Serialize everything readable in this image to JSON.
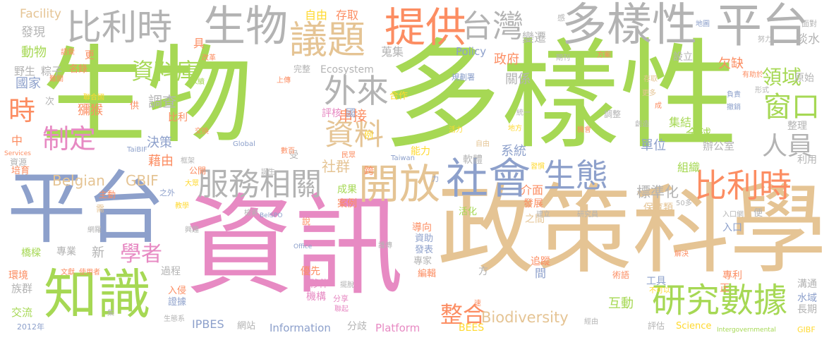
{
  "palette": {
    "green": "#A6D854",
    "pink": "#E78AC3",
    "blue": "#8DA0CB",
    "tan": "#E5C494",
    "orange": "#FC8D62",
    "yellow": "#FFD92F",
    "gray": "#B3B3B3",
    "teal": "#66C2A5"
  },
  "words": [
    {
      "text": "生物",
      "color": "green"
    },
    {
      "text": "多樣性",
      "color": "green"
    },
    {
      "text": "資訊",
      "color": "pink"
    },
    {
      "text": "政策科學",
      "color": "tan"
    },
    {
      "text": "平台",
      "color": "blue"
    },
    {
      "text": "知識",
      "color": "green"
    },
    {
      "text": "比利時",
      "color": "gray"
    },
    {
      "text": "生物",
      "color": "gray"
    },
    {
      "text": "多樣性",
      "color": "gray"
    },
    {
      "text": "平台",
      "color": "gray"
    },
    {
      "text": "提供",
      "color": "orange"
    },
    {
      "text": "台灣",
      "color": "gray"
    },
    {
      "text": "議題",
      "color": "tan"
    },
    {
      "text": "服務相關",
      "color": "gray"
    },
    {
      "text": "開放",
      "color": "tan"
    },
    {
      "text": "社會",
      "color": "blue"
    },
    {
      "text": "生態",
      "color": "blue"
    },
    {
      "text": "比利時",
      "color": "orange"
    },
    {
      "text": "研究數據",
      "color": "green"
    },
    {
      "text": "資料",
      "color": "tan"
    },
    {
      "text": "外來",
      "color": "gray"
    },
    {
      "text": "資料庫",
      "color": "green"
    },
    {
      "text": "制定",
      "color": "pink"
    },
    {
      "text": "學者",
      "color": "pink"
    },
    {
      "text": "時",
      "color": "orange"
    },
    {
      "text": "人員",
      "color": "gray"
    },
    {
      "text": "窗口",
      "color": "green"
    },
    {
      "text": "領域",
      "color": "green"
    },
    {
      "text": "整合",
      "color": "orange"
    },
    {
      "text": "Biodiversity",
      "color": "tan"
    },
    {
      "text": "Belgian",
      "color": "tan"
    },
    {
      "text": "GBIF",
      "color": "tan"
    },
    {
      "text": "Facility",
      "color": "tan"
    },
    {
      "text": "自由",
      "color": "yellow"
    },
    {
      "text": "存取",
      "color": "orange"
    },
    {
      "text": "變遷",
      "color": "gray"
    },
    {
      "text": "淡水",
      "color": "gray"
    },
    {
      "text": "發現",
      "color": "gray"
    },
    {
      "text": "動物",
      "color": "green"
    },
    {
      "text": "野生",
      "color": "gray"
    },
    {
      "text": "粽子",
      "color": "gray"
    },
    {
      "text": "國家",
      "color": "blue"
    },
    {
      "text": "獼猴",
      "color": "orange"
    },
    {
      "text": "比利",
      "color": "orange"
    },
    {
      "text": "調查",
      "color": "gray"
    },
    {
      "text": "Policy",
      "color": "blue"
    },
    {
      "text": "政府",
      "color": "orange"
    },
    {
      "text": "蒐集",
      "color": "gray"
    },
    {
      "text": "欠缺",
      "color": "orange"
    },
    {
      "text": "關係",
      "color": "gray"
    },
    {
      "text": "Ecosystem",
      "color": "gray"
    },
    {
      "text": "完整",
      "color": "gray"
    },
    {
      "text": "串接",
      "color": "orange"
    },
    {
      "text": "合作",
      "color": "yellow"
    },
    {
      "text": "評核",
      "color": "pink"
    },
    {
      "text": "國",
      "color": "blue"
    },
    {
      "text": "集結",
      "color": "green"
    },
    {
      "text": "全球",
      "color": "green"
    },
    {
      "text": "整理",
      "color": "gray"
    },
    {
      "text": "單位",
      "color": "blue"
    },
    {
      "text": "辦公室",
      "color": "gray"
    },
    {
      "text": "決策",
      "color": "blue"
    },
    {
      "text": "藉由",
      "color": "orange"
    },
    {
      "text": "社群",
      "color": "tan"
    },
    {
      "text": "系統",
      "color": "blue"
    },
    {
      "text": "能力",
      "color": "yellow"
    },
    {
      "text": "軟體",
      "color": "gray"
    },
    {
      "text": "組織",
      "color": "green"
    },
    {
      "text": "利用",
      "color": "gray"
    },
    {
      "text": "標準化",
      "color": "gray"
    },
    {
      "text": "介面",
      "color": "orange"
    },
    {
      "text": "成果",
      "color": "green"
    },
    {
      "text": "案例",
      "color": "orange"
    },
    {
      "text": "活化",
      "color": "green"
    },
    {
      "text": "發展",
      "color": "orange"
    },
    {
      "text": "保育類",
      "color": "tan"
    },
    {
      "text": "之間",
      "color": "tan"
    },
    {
      "text": "導向",
      "color": "orange"
    },
    {
      "text": "資助",
      "color": "blue"
    },
    {
      "text": "發表",
      "color": "blue"
    },
    {
      "text": "專家",
      "color": "gray"
    },
    {
      "text": "間",
      "color": "blue"
    },
    {
      "text": "追蹤",
      "color": "orange"
    },
    {
      "text": "方",
      "color": "gray"
    },
    {
      "text": "優先",
      "color": "orange"
    },
    {
      "text": "夥伴",
      "color": "pink"
    },
    {
      "text": "機構",
      "color": "pink"
    },
    {
      "text": "編輯",
      "color": "orange"
    },
    {
      "text": "互動",
      "color": "green"
    },
    {
      "text": "工具",
      "color": "blue"
    },
    {
      "text": "溝通",
      "color": "gray"
    },
    {
      "text": "水域",
      "color": "blue"
    },
    {
      "text": "長期",
      "color": "gray"
    },
    {
      "text": "過程",
      "color": "gray"
    },
    {
      "text": "入侵",
      "color": "orange"
    },
    {
      "text": "證據",
      "color": "blue"
    },
    {
      "text": "族群",
      "color": "gray"
    },
    {
      "text": "交流",
      "color": "green"
    },
    {
      "text": "環境",
      "color": "orange"
    },
    {
      "text": "橋樑",
      "color": "green"
    },
    {
      "text": "專業",
      "color": "gray"
    },
    {
      "text": "新",
      "color": "gray"
    },
    {
      "text": "培育",
      "color": "orange"
    },
    {
      "text": "資源",
      "color": "gray"
    },
    {
      "text": "IPBES",
      "color": "blue"
    },
    {
      "text": "網站",
      "color": "gray"
    },
    {
      "text": "Information",
      "color": "blue"
    },
    {
      "text": "分歧",
      "color": "gray"
    },
    {
      "text": "Platform",
      "color": "pink"
    },
    {
      "text": "BEES",
      "color": "yellow"
    },
    {
      "text": "Science",
      "color": "yellow"
    },
    {
      "text": "評估",
      "color": "gray"
    },
    {
      "text": "中",
      "color": "orange"
    },
    {
      "text": "名錄",
      "color": "orange"
    },
    {
      "text": "次",
      "color": "gray"
    },
    {
      "text": "具",
      "color": "orange"
    },
    {
      "text": "更",
      "color": "orange"
    },
    {
      "text": "設立",
      "color": "gray"
    },
    {
      "text": "原始",
      "color": "gray"
    },
    {
      "text": "面對",
      "color": "gray"
    },
    {
      "text": "公開",
      "color": "orange"
    },
    {
      "text": "主動",
      "color": "orange"
    },
    {
      "text": "需",
      "color": "tan"
    },
    {
      "text": "跨",
      "color": "orange"
    },
    {
      "text": "受",
      "color": "gray"
    },
    {
      "text": "例",
      "color": "yellow"
    },
    {
      "text": "供",
      "color": "orange"
    },
    {
      "text": "地圖",
      "color": "blue"
    },
    {
      "text": "感",
      "color": "gray"
    },
    {
      "text": "努力",
      "color": "gray"
    },
    {
      "text": "方案",
      "color": "orange"
    },
    {
      "text": "期刊",
      "color": "gray"
    },
    {
      "text": "規劃署",
      "color": "blue"
    },
    {
      "text": "調整",
      "color": "gray"
    },
    {
      "text": "更多",
      "color": "tan"
    },
    {
      "text": "成",
      "color": "orange"
    },
    {
      "text": "負責",
      "color": "blue"
    },
    {
      "text": "撤銷",
      "color": "blue"
    },
    {
      "text": "形式",
      "color": "gray"
    },
    {
      "text": "有助於",
      "color": "orange"
    },
    {
      "text": "存取",
      "color": "tan"
    },
    {
      "text": "統一",
      "color": "gray"
    },
    {
      "text": "地方",
      "color": "yellow"
    },
    {
      "text": "機會",
      "color": "orange"
    },
    {
      "text": "創造",
      "color": "gray"
    },
    {
      "text": "習慣",
      "color": "yellow"
    },
    {
      "text": "Global",
      "color": "blue"
    },
    {
      "text": "Taiwan",
      "color": "blue"
    },
    {
      "text": "TaiBIF",
      "color": "blue"
    },
    {
      "text": "Services",
      "color": "orange"
    },
    {
      "text": "Office",
      "color": "blue"
    },
    {
      "text": "BelSPO",
      "color": "blue"
    },
    {
      "text": "2012年",
      "color": "blue"
    },
    {
      "text": "Intergovernmental",
      "color": "green"
    },
    {
      "text": "GIBF",
      "color": "yellow"
    },
    {
      "text": "50多",
      "color": "gray"
    },
    {
      "text": "研究員",
      "color": "gray"
    },
    {
      "text": "入口網",
      "color": "gray"
    },
    {
      "text": "入口",
      "color": "blue"
    },
    {
      "text": "便",
      "color": "gray"
    },
    {
      "text": "正",
      "color": "orange"
    },
    {
      "text": "專利",
      "color": "orange"
    },
    {
      "text": "術語",
      "color": "orange"
    },
    {
      "text": "解決",
      "color": "orange"
    },
    {
      "text": "不可以",
      "color": "yellow"
    },
    {
      "text": "語彙",
      "color": "orange"
    },
    {
      "text": "改革",
      "color": "orange"
    },
    {
      "text": "上傳",
      "color": "orange"
    },
    {
      "text": "永續",
      "color": "green"
    },
    {
      "text": "難關",
      "color": "orange"
    },
    {
      "text": "聯合國",
      "color": "yellow"
    },
    {
      "text": "交換",
      "color": "orange"
    },
    {
      "text": "框架",
      "color": "gray"
    },
    {
      "text": "大眾",
      "color": "yellow"
    },
    {
      "text": "誕生",
      "color": "gray"
    },
    {
      "text": "數百",
      "color": "orange"
    },
    {
      "text": "民眾",
      "color": "orange"
    },
    {
      "text": "檢索",
      "color": "gray"
    },
    {
      "text": "之外",
      "color": "blue"
    },
    {
      "text": "教學",
      "color": "yellow"
    },
    {
      "text": "網羅",
      "color": "gray"
    },
    {
      "text": "興趣",
      "color": "gray"
    },
    {
      "text": "說",
      "color": "orange"
    },
    {
      "text": "文獻",
      "color": "orange"
    },
    {
      "text": "使用者",
      "color": "orange"
    },
    {
      "text": "擺脫",
      "color": "gray"
    },
    {
      "text": "分享",
      "color": "pink"
    },
    {
      "text": "聯起",
      "color": "pink"
    },
    {
      "text": "護傳",
      "color": "gray"
    },
    {
      "text": "速",
      "color": "orange"
    },
    {
      "text": "經由",
      "color": "gray"
    },
    {
      "text": "生態系",
      "color": "gray"
    },
    {
      "text": "集",
      "color": "gray"
    },
    {
      "text": "活力",
      "color": "yellow"
    },
    {
      "text": "建立",
      "color": "gray"
    },
    {
      "text": "自由",
      "color": "tan"
    },
    {
      "text": "力",
      "color": "blue"
    },
    {
      "text": "湖泊",
      "color": "gray"
    },
    {
      "text": "陸地",
      "color": "gray"
    },
    {
      "text": "年",
      "color": "orange"
    },
    {
      "text": "圖鑑",
      "color": "gray"
    }
  ]
}
